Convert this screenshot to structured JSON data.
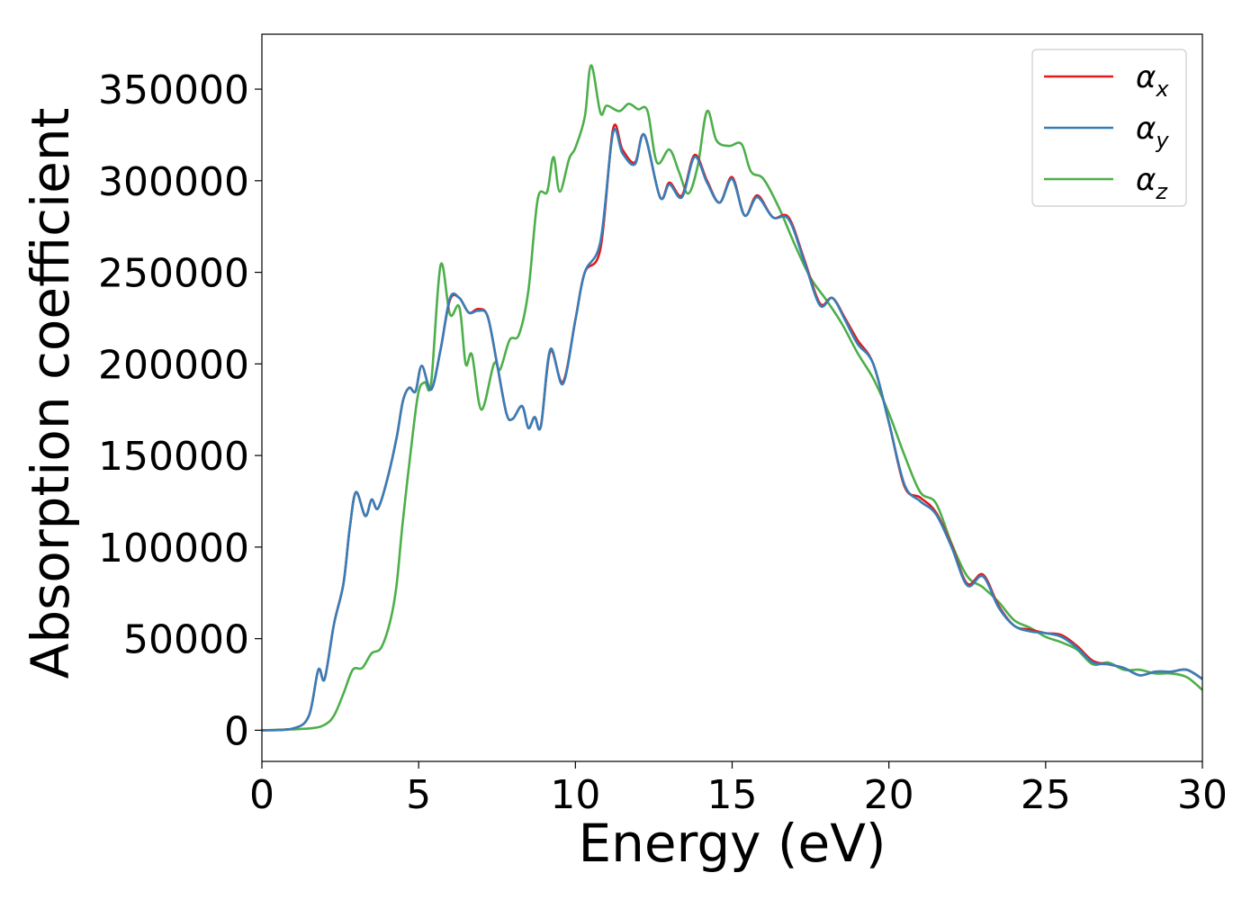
{
  "chart_data": {
    "type": "line",
    "title": "",
    "xlabel": "Energy (eV)",
    "ylabel": "Absorption coefficient",
    "xlim": [
      0,
      30
    ],
    "ylim": [
      -17000,
      380000
    ],
    "xticks": [
      0,
      5,
      10,
      15,
      20,
      25,
      30
    ],
    "yticks": [
      0,
      50000,
      100000,
      150000,
      200000,
      250000,
      300000,
      350000
    ],
    "grid": false,
    "legend": {
      "placement": "top-right",
      "entries": [
        {
          "base": "α",
          "sub": "x",
          "color": "#e41a1c"
        },
        {
          "base": "α",
          "sub": "y",
          "color": "#377eb8"
        },
        {
          "base": "α",
          "sub": "z",
          "color": "#4daf4a"
        }
      ]
    },
    "series": [
      {
        "name": "αx",
        "color": "#e41a1c",
        "points": [
          [
            0,
            0
          ],
          [
            1,
            1000
          ],
          [
            1.5,
            8000
          ],
          [
            1.8,
            33000
          ],
          [
            2.0,
            28000
          ],
          [
            2.3,
            58000
          ],
          [
            2.6,
            80000
          ],
          [
            2.8,
            110000
          ],
          [
            3.0,
            130000
          ],
          [
            3.3,
            117000
          ],
          [
            3.5,
            126000
          ],
          [
            3.7,
            121000
          ],
          [
            4.0,
            137000
          ],
          [
            4.3,
            160000
          ],
          [
            4.5,
            180000
          ],
          [
            4.7,
            187000
          ],
          [
            4.9,
            185000
          ],
          [
            5.1,
            199000
          ],
          [
            5.4,
            186000
          ],
          [
            5.7,
            208000
          ],
          [
            6.0,
            235000
          ],
          [
            6.3,
            236000
          ],
          [
            6.6,
            228000
          ],
          [
            6.9,
            230000
          ],
          [
            7.2,
            226000
          ],
          [
            7.5,
            200000
          ],
          [
            7.8,
            173000
          ],
          [
            8.0,
            170000
          ],
          [
            8.3,
            177000
          ],
          [
            8.5,
            165000
          ],
          [
            8.7,
            171000
          ],
          [
            8.9,
            166000
          ],
          [
            9.2,
            207000
          ],
          [
            9.6,
            190000
          ],
          [
            10.0,
            224000
          ],
          [
            10.3,
            250000
          ],
          [
            10.8,
            263000
          ],
          [
            11.2,
            328000
          ],
          [
            11.5,
            317000
          ],
          [
            11.9,
            310000
          ],
          [
            12.2,
            325000
          ],
          [
            12.7,
            291000
          ],
          [
            13.0,
            299000
          ],
          [
            13.4,
            292000
          ],
          [
            13.8,
            314000
          ],
          [
            14.2,
            300000
          ],
          [
            14.6,
            288000
          ],
          [
            15.0,
            302000
          ],
          [
            15.4,
            281000
          ],
          [
            15.8,
            292000
          ],
          [
            16.3,
            280000
          ],
          [
            16.8,
            280000
          ],
          [
            17.3,
            257000
          ],
          [
            17.8,
            233000
          ],
          [
            18.2,
            236000
          ],
          [
            18.6,
            225000
          ],
          [
            19.0,
            213000
          ],
          [
            19.5,
            200000
          ],
          [
            20.0,
            168000
          ],
          [
            20.5,
            133000
          ],
          [
            21.0,
            127000
          ],
          [
            21.5,
            119000
          ],
          [
            22.0,
            101000
          ],
          [
            22.5,
            80000
          ],
          [
            23.0,
            85000
          ],
          [
            23.5,
            68000
          ],
          [
            24.0,
            57000
          ],
          [
            24.5,
            55000
          ],
          [
            25.0,
            53000
          ],
          [
            25.5,
            52000
          ],
          [
            26.0,
            46000
          ],
          [
            26.5,
            38000
          ],
          [
            27.0,
            36000
          ],
          [
            27.5,
            34000
          ],
          [
            28.0,
            30000
          ],
          [
            28.5,
            32000
          ],
          [
            29.0,
            32000
          ],
          [
            29.5,
            33000
          ],
          [
            30.0,
            28000
          ]
        ]
      },
      {
        "name": "αy",
        "color": "#377eb8",
        "points": [
          [
            0,
            0
          ],
          [
            1,
            1000
          ],
          [
            1.5,
            8000
          ],
          [
            1.8,
            33000
          ],
          [
            2.0,
            28000
          ],
          [
            2.3,
            58000
          ],
          [
            2.6,
            80000
          ],
          [
            2.8,
            110000
          ],
          [
            3.0,
            130000
          ],
          [
            3.3,
            117000
          ],
          [
            3.5,
            126000
          ],
          [
            3.7,
            121000
          ],
          [
            4.0,
            137000
          ],
          [
            4.3,
            160000
          ],
          [
            4.5,
            180000
          ],
          [
            4.7,
            187000
          ],
          [
            4.9,
            185000
          ],
          [
            5.1,
            199000
          ],
          [
            5.4,
            186000
          ],
          [
            5.7,
            208000
          ],
          [
            6.0,
            236000
          ],
          [
            6.3,
            236000
          ],
          [
            6.6,
            228000
          ],
          [
            6.9,
            229000
          ],
          [
            7.2,
            226000
          ],
          [
            7.5,
            200000
          ],
          [
            7.8,
            173000
          ],
          [
            8.0,
            170000
          ],
          [
            8.3,
            177000
          ],
          [
            8.5,
            165000
          ],
          [
            8.7,
            171000
          ],
          [
            8.9,
            166000
          ],
          [
            9.2,
            208000
          ],
          [
            9.6,
            189000
          ],
          [
            10.0,
            224000
          ],
          [
            10.3,
            250000
          ],
          [
            10.8,
            267000
          ],
          [
            11.2,
            326000
          ],
          [
            11.5,
            315000
          ],
          [
            11.9,
            309000
          ],
          [
            12.2,
            325000
          ],
          [
            12.7,
            291000
          ],
          [
            13.0,
            298000
          ],
          [
            13.4,
            291000
          ],
          [
            13.8,
            313000
          ],
          [
            14.2,
            299000
          ],
          [
            14.6,
            288000
          ],
          [
            15.0,
            301000
          ],
          [
            15.4,
            281000
          ],
          [
            15.8,
            291000
          ],
          [
            16.3,
            280000
          ],
          [
            16.8,
            279000
          ],
          [
            17.3,
            256000
          ],
          [
            17.8,
            232000
          ],
          [
            18.2,
            236000
          ],
          [
            18.6,
            224000
          ],
          [
            19.0,
            211000
          ],
          [
            19.5,
            200000
          ],
          [
            20.0,
            168000
          ],
          [
            20.5,
            134000
          ],
          [
            21.0,
            125000
          ],
          [
            21.5,
            118000
          ],
          [
            22.0,
            100000
          ],
          [
            22.5,
            79000
          ],
          [
            23.0,
            84000
          ],
          [
            23.5,
            67000
          ],
          [
            24.0,
            57000
          ],
          [
            24.5,
            54000
          ],
          [
            25.0,
            53000
          ],
          [
            25.5,
            51000
          ],
          [
            26.0,
            45000
          ],
          [
            26.5,
            37000
          ],
          [
            27.0,
            36000
          ],
          [
            27.5,
            34000
          ],
          [
            28.0,
            30000
          ],
          [
            28.5,
            32000
          ],
          [
            29.0,
            32000
          ],
          [
            29.5,
            33000
          ],
          [
            30.0,
            28000
          ]
        ]
      },
      {
        "name": "αz",
        "color": "#4daf4a",
        "points": [
          [
            0,
            0
          ],
          [
            1.5,
            1000
          ],
          [
            2.0,
            3000
          ],
          [
            2.3,
            8000
          ],
          [
            2.6,
            20000
          ],
          [
            2.9,
            33000
          ],
          [
            3.2,
            34000
          ],
          [
            3.5,
            42000
          ],
          [
            3.8,
            45000
          ],
          [
            4.1,
            60000
          ],
          [
            4.3,
            80000
          ],
          [
            4.5,
            115000
          ],
          [
            4.8,
            160000
          ],
          [
            5.0,
            185000
          ],
          [
            5.2,
            190000
          ],
          [
            5.4,
            190000
          ],
          [
            5.7,
            254000
          ],
          [
            6.0,
            227000
          ],
          [
            6.3,
            231000
          ],
          [
            6.5,
            200000
          ],
          [
            6.7,
            205000
          ],
          [
            7.0,
            175000
          ],
          [
            7.4,
            200000
          ],
          [
            7.6,
            197000
          ],
          [
            7.9,
            213000
          ],
          [
            8.2,
            216000
          ],
          [
            8.5,
            240000
          ],
          [
            8.8,
            290000
          ],
          [
            9.1,
            294000
          ],
          [
            9.3,
            313000
          ],
          [
            9.5,
            294000
          ],
          [
            9.8,
            312000
          ],
          [
            10.0,
            318000
          ],
          [
            10.3,
            335000
          ],
          [
            10.5,
            363000
          ],
          [
            10.8,
            337000
          ],
          [
            11.0,
            341000
          ],
          [
            11.4,
            338000
          ],
          [
            11.7,
            342000
          ],
          [
            12.0,
            339000
          ],
          [
            12.3,
            338000
          ],
          [
            12.6,
            310000
          ],
          [
            13.0,
            317000
          ],
          [
            13.3,
            305000
          ],
          [
            13.6,
            293000
          ],
          [
            13.9,
            308000
          ],
          [
            14.2,
            338000
          ],
          [
            14.5,
            322000
          ],
          [
            14.9,
            319000
          ],
          [
            15.3,
            320000
          ],
          [
            15.6,
            305000
          ],
          [
            16.0,
            301000
          ],
          [
            16.5,
            285000
          ],
          [
            17.0,
            265000
          ],
          [
            17.5,
            247000
          ],
          [
            18.0,
            235000
          ],
          [
            18.5,
            222000
          ],
          [
            19.0,
            206000
          ],
          [
            19.5,
            192000
          ],
          [
            20.0,
            173000
          ],
          [
            20.5,
            150000
          ],
          [
            21.0,
            130000
          ],
          [
            21.5,
            124000
          ],
          [
            22.0,
            102000
          ],
          [
            22.5,
            84000
          ],
          [
            23.0,
            78000
          ],
          [
            23.5,
            70000
          ],
          [
            24.0,
            60000
          ],
          [
            24.5,
            56000
          ],
          [
            25.0,
            51000
          ],
          [
            25.5,
            48000
          ],
          [
            26.0,
            44000
          ],
          [
            26.5,
            36000
          ],
          [
            27.0,
            37000
          ],
          [
            27.5,
            33000
          ],
          [
            28.0,
            33000
          ],
          [
            28.5,
            31000
          ],
          [
            29.0,
            31000
          ],
          [
            29.5,
            29000
          ],
          [
            30.0,
            22000
          ]
        ]
      }
    ]
  }
}
